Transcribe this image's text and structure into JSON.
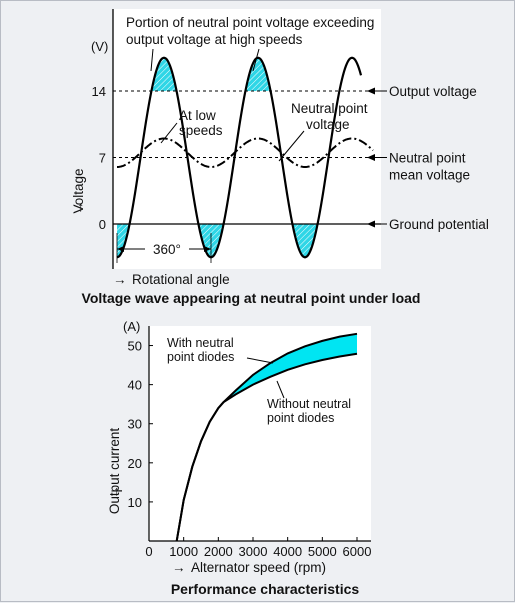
{
  "chart_data": [
    {
      "type": "line",
      "caption": "Voltage wave appearing at neutral point under load",
      "ylabel": "Voltage",
      "yunit": "(V)",
      "xlabel": "Rotational angle",
      "yticks": [
        "0",
        "7",
        "14"
      ],
      "period_label": "360°",
      "reference_lines": [
        {
          "name": "Output voltage",
          "value": 14
        },
        {
          "name": "Neutral point mean voltage",
          "value": 7
        },
        {
          "name": "Ground potential",
          "value": 0
        }
      ],
      "series": [
        {
          "name": "Neutral point voltage",
          "description_label": "Neutral point voltage",
          "amplitude": 10.5,
          "mean": 7,
          "cycles": 2.6
        },
        {
          "name": "At low speeds",
          "amplitude": 1.5,
          "mean": 7.5,
          "cycles": 2.6
        }
      ],
      "annotation": "Portion of neutral point voltage exceeding output voltage at high speeds",
      "at_low_speeds_label": "At low speeds",
      "colors": {
        "shade": "#2fd6e6",
        "line": "#000000"
      }
    },
    {
      "type": "line",
      "caption": "Performance characteristics",
      "xlabel": "Alternator speed (rpm)",
      "ylabel": "Output current",
      "yunit": "(A)",
      "xlim": [
        0,
        6000
      ],
      "ylim": [
        0,
        55
      ],
      "xticks": [
        0,
        1000,
        2000,
        3000,
        4000,
        5000,
        6000
      ],
      "yticks": [
        10,
        20,
        30,
        40,
        50
      ],
      "series": [
        {
          "name": "With neutral point diodes",
          "x": [
            800,
            1000,
            1250,
            1500,
            1750,
            2000,
            2150,
            2500,
            3000,
            3500,
            4000,
            4500,
            5000,
            5500,
            6000
          ],
          "y": [
            0,
            10.5,
            19,
            25.5,
            30.5,
            34,
            35.5,
            38.5,
            42.5,
            45.5,
            48,
            49.8,
            51.2,
            52.3,
            53
          ]
        },
        {
          "name": "Without neutral point diodes",
          "x": [
            800,
            1000,
            1250,
            1500,
            1750,
            2000,
            2150,
            2500,
            3000,
            3500,
            4000,
            4500,
            5000,
            5500,
            6000
          ],
          "y": [
            0,
            10.5,
            19,
            25.5,
            30.5,
            34,
            35.5,
            37.5,
            40,
            42,
            43.8,
            45.2,
            46.3,
            47.2,
            47.9
          ]
        }
      ],
      "with_label": "With neutral point diodes",
      "without_label": "Without neutral point diodes",
      "colors": {
        "shade": "#00e5f2",
        "line": "#000000"
      }
    }
  ]
}
